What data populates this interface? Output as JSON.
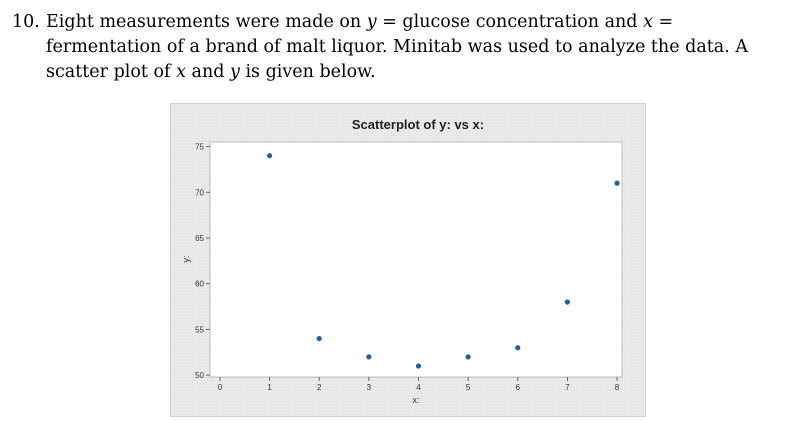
{
  "question": {
    "number": "10.",
    "text_1": "Eight measurements were made on ",
    "var_y": "y",
    "text_2": " = glucose concentration and ",
    "var_x": "x",
    "text_3": " = fermentation of a brand of malt liquor. Minitab was used to analyze the data. A scatter plot of ",
    "var_x2": "x",
    "text_4": " and ",
    "var_y2": "y",
    "text_5": " is given below."
  },
  "chart_data": {
    "type": "scatter",
    "title": "Scatterplot of y: vs x:",
    "xlabel": "x:",
    "ylabel": "y:",
    "xlim": [
      -0.2,
      8.1
    ],
    "ylim": [
      49.8,
      75.5
    ],
    "xticks": [
      0,
      1,
      2,
      3,
      4,
      5,
      6,
      7,
      8
    ],
    "yticks": [
      50,
      55,
      60,
      65,
      70,
      75
    ],
    "x": [
      1,
      2,
      3,
      4,
      5,
      6,
      7,
      8
    ],
    "y": [
      74,
      54,
      52,
      51,
      52,
      53,
      58,
      71
    ],
    "grid": false,
    "colors": {
      "point": "#1f5fa8",
      "plot_bg": "#ffffff",
      "panel_bg": "#e9e9e9"
    }
  }
}
